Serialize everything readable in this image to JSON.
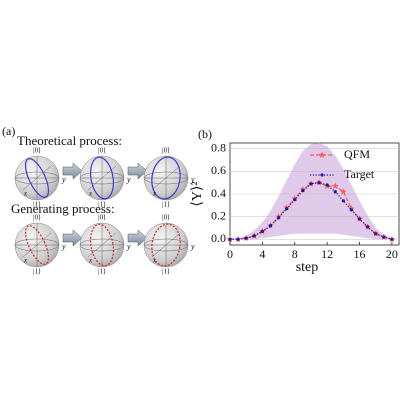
{
  "panel_a": {
    "label": "(a)",
    "rows": [
      {
        "title": "Theoretical process:",
        "color": "#3b3bd6",
        "dash": false
      },
      {
        "title": "Generating process:",
        "color": "#d62a2a",
        "dash": true
      }
    ],
    "sphere_labels": {
      "top": "|0⟩",
      "bottom": "|1⟩",
      "x": "x",
      "y": "y"
    }
  },
  "chart_data": {
    "type": "line",
    "panel_label": "(b)",
    "x_label": "step",
    "y_label": "⟨Y⟩²",
    "x": [
      0,
      1,
      2,
      3,
      4,
      5,
      6,
      7,
      8,
      9,
      10,
      11,
      12,
      13,
      14,
      15,
      16,
      17,
      18,
      19,
      20
    ],
    "series": [
      {
        "name": "QFM",
        "color": "#ff5a5a",
        "style": "dashed",
        "marker": "star",
        "values": [
          0.0,
          0.0,
          0.01,
          0.03,
          0.07,
          0.12,
          0.2,
          0.28,
          0.36,
          0.44,
          0.49,
          0.5,
          0.47,
          0.47,
          0.42,
          0.27,
          0.18,
          0.11,
          0.05,
          0.02,
          0.0
        ]
      },
      {
        "name": "Target",
        "color": "#1a1aa0",
        "style": "dotted",
        "marker": "dot",
        "values": [
          0.0,
          0.0,
          0.01,
          0.03,
          0.07,
          0.12,
          0.19,
          0.27,
          0.35,
          0.43,
          0.49,
          0.5,
          0.48,
          0.42,
          0.34,
          0.26,
          0.18,
          0.11,
          0.05,
          0.02,
          0.0
        ]
      }
    ],
    "band": {
      "color": "#c9a6da",
      "upper": [
        0.0,
        0.01,
        0.03,
        0.08,
        0.15,
        0.25,
        0.38,
        0.52,
        0.66,
        0.78,
        0.84,
        0.85,
        0.82,
        0.74,
        0.62,
        0.48,
        0.34,
        0.21,
        0.1,
        0.04,
        0.01
      ],
      "lower": [
        0.0,
        0.0,
        0.0,
        0.0,
        0.01,
        0.02,
        0.03,
        0.04,
        0.05,
        0.05,
        0.05,
        0.05,
        0.05,
        0.05,
        0.04,
        0.03,
        0.02,
        0.01,
        0.0,
        0.0,
        0.0
      ]
    },
    "xlim": [
      0,
      21
    ],
    "ylim": [
      -0.05,
      0.85
    ],
    "xticks": [
      0,
      4,
      8,
      12,
      16,
      20
    ],
    "yticks": [
      {
        "value": 0,
        "label": "0.0"
      },
      {
        "value": 0.2,
        "label": "0.2"
      },
      {
        "value": 0.4,
        "label": "0.4"
      },
      {
        "value": 0.6,
        "label": "0.6"
      },
      {
        "value": 0.8,
        "label": "0.8"
      }
    ],
    "grid": true,
    "legend": "upper right"
  }
}
